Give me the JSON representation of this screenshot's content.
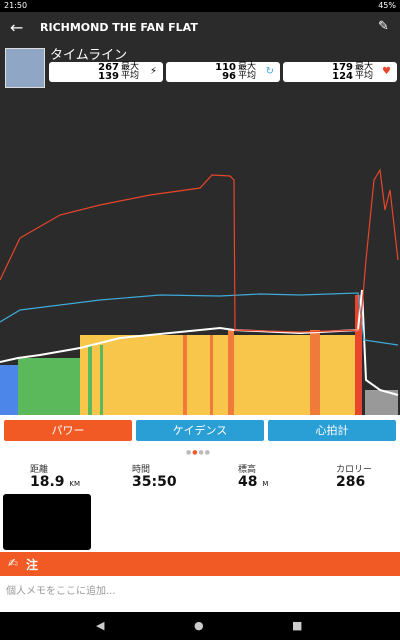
{
  "status_bar": {
    "time": "21:50",
    "battery": "45%"
  },
  "header": {
    "title": "RICHMOND THE FAN FLAT"
  },
  "timeline": {
    "title": "タイムライン",
    "stats": [
      {
        "max": 267,
        "max_label": "最大",
        "avg": 139,
        "avg_label": "平均"
      },
      {
        "max": 110,
        "max_label": "最大",
        "avg": 96,
        "avg_label": "平均"
      },
      {
        "max": 179,
        "max_label": "最大",
        "avg": 124,
        "avg_label": "平均"
      }
    ]
  },
  "tabs": [
    "パワー",
    "ケイデンス",
    "心拍計"
  ],
  "summary": [
    {
      "label": "距離",
      "value": 18.9,
      "unit": "KM"
    },
    {
      "label": "時間",
      "value": "35:50"
    },
    {
      "label": "標高",
      "value": 48,
      "unit": "M"
    },
    {
      "label": "カロリー",
      "value": 286
    }
  ],
  "notes": {
    "title": "注",
    "placeholder": "個人メモをここに追加..."
  }
}
